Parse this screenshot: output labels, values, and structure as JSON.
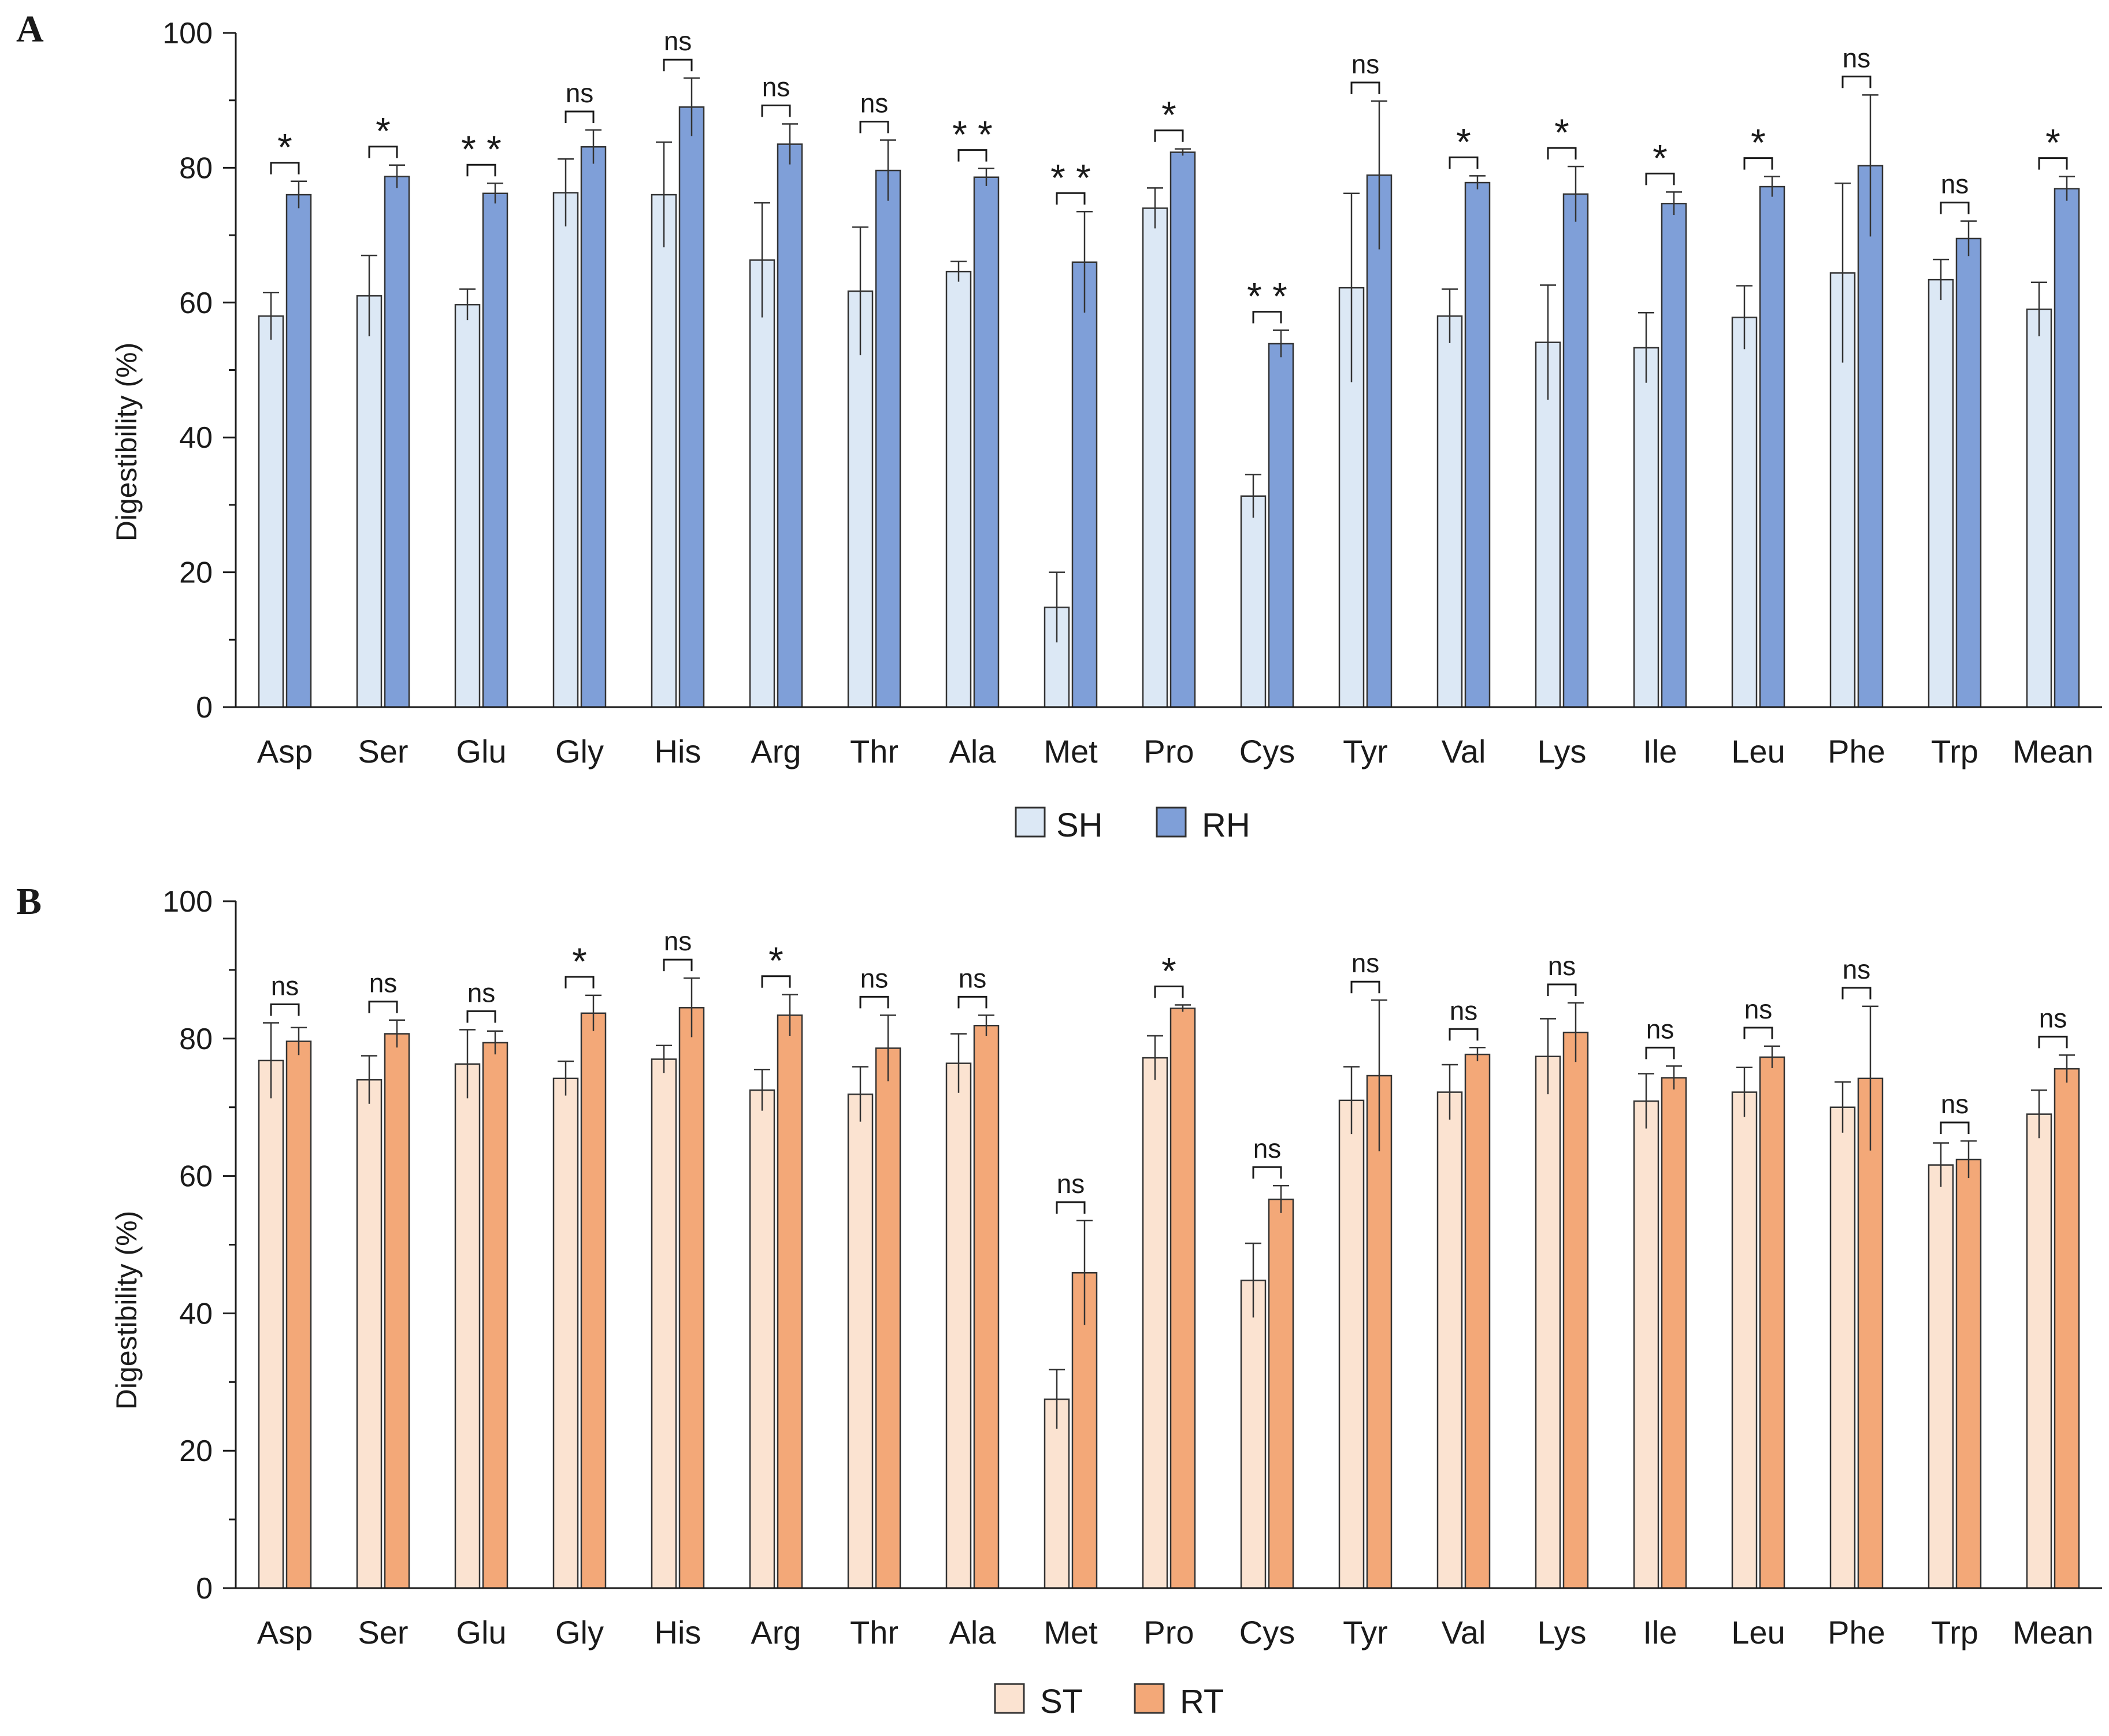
{
  "chart_data": [
    {
      "type": "bar",
      "panel_label": "A",
      "ylabel": "Digestibility (%)",
      "xlabel": "",
      "ylim": [
        0,
        100
      ],
      "yticks": [
        0,
        20,
        40,
        60,
        80,
        100
      ],
      "grid": false,
      "legend_position": "bottom-center",
      "categories": [
        "Asp",
        "Ser",
        "Glu",
        "Gly",
        "His",
        "Arg",
        "Thr",
        "Ala",
        "Met",
        "Pro",
        "Cys",
        "Tyr",
        "Val",
        "Lys",
        "Ile",
        "Leu",
        "Phe",
        "Trp",
        "Mean"
      ],
      "series": [
        {
          "name": "SH",
          "color": "#dce8f5",
          "values": [
            58,
            61,
            59.7,
            76.3,
            76,
            66.3,
            61.7,
            64.6,
            14.8,
            74,
            31.3,
            62.2,
            58,
            54.1,
            53.3,
            57.8,
            64.4,
            63.4,
            59
          ],
          "errors": [
            3.5,
            6,
            2.3,
            5,
            7.8,
            8.5,
            9.5,
            1.5,
            5.2,
            3,
            3.2,
            14,
            4,
            8.5,
            5.2,
            4.7,
            13.3,
            3,
            4
          ]
        },
        {
          "name": "RH",
          "color": "#7f9fd8",
          "values": [
            76,
            78.7,
            76.2,
            83.1,
            89,
            83.5,
            79.6,
            78.6,
            66,
            82.3,
            53.9,
            78.9,
            77.8,
            76.1,
            74.7,
            77.2,
            80.3,
            69.5,
            76.9
          ],
          "errors": [
            2,
            1.7,
            1.5,
            2.5,
            4.3,
            3,
            4.5,
            1.3,
            7.5,
            0.5,
            2,
            11,
            1,
            4.1,
            1.7,
            1.5,
            10.5,
            2.6,
            1.8
          ]
        }
      ],
      "significance": [
        "*",
        "*",
        "**",
        "ns",
        "ns",
        "ns",
        "ns",
        "**",
        "**",
        "*",
        "**",
        "ns",
        "*",
        "*",
        "*",
        "*",
        "ns",
        "ns",
        "*"
      ]
    },
    {
      "type": "bar",
      "panel_label": "B",
      "ylabel": "Digestibility (%)",
      "xlabel": "",
      "ylim": [
        0,
        100
      ],
      "yticks": [
        0,
        20,
        40,
        60,
        80,
        100
      ],
      "grid": false,
      "legend_position": "bottom-center",
      "categories": [
        "Asp",
        "Ser",
        "Glu",
        "Gly",
        "His",
        "Arg",
        "Thr",
        "Ala",
        "Met",
        "Pro",
        "Cys",
        "Tyr",
        "Val",
        "Lys",
        "Ile",
        "Leu",
        "Phe",
        "Trp",
        "Mean"
      ],
      "series": [
        {
          "name": "ST",
          "color": "#fbe3d1",
          "values": [
            76.8,
            74,
            76.3,
            74.2,
            77,
            72.5,
            71.9,
            76.4,
            27.5,
            77.2,
            44.8,
            71,
            72.2,
            77.4,
            70.9,
            72.2,
            70,
            61.6,
            69
          ],
          "errors": [
            5.5,
            3.5,
            5,
            2.5,
            2,
            3,
            4,
            4.3,
            4.3,
            3.2,
            5.4,
            4.9,
            4,
            5.5,
            4,
            3.6,
            3.7,
            3.2,
            3.5
          ]
        },
        {
          "name": "RT",
          "color": "#f3a878",
          "values": [
            79.6,
            80.7,
            79.4,
            83.7,
            84.5,
            83.4,
            78.6,
            81.9,
            45.9,
            84.4,
            56.6,
            74.6,
            77.7,
            80.9,
            74.3,
            77.3,
            74.2,
            62.4,
            75.6
          ],
          "errors": [
            2,
            2,
            1.7,
            2.6,
            4.3,
            3,
            4.8,
            1.5,
            7.6,
            0.5,
            2,
            11,
            1,
            4.3,
            1.7,
            1.6,
            10.5,
            2.7,
            2
          ]
        }
      ],
      "significance": [
        "ns",
        "ns",
        "ns",
        "*",
        "ns",
        "*",
        "ns",
        "ns",
        "ns",
        "*",
        "ns",
        "ns",
        "ns",
        "ns",
        "ns",
        "ns",
        "ns",
        "ns",
        "ns"
      ]
    }
  ]
}
